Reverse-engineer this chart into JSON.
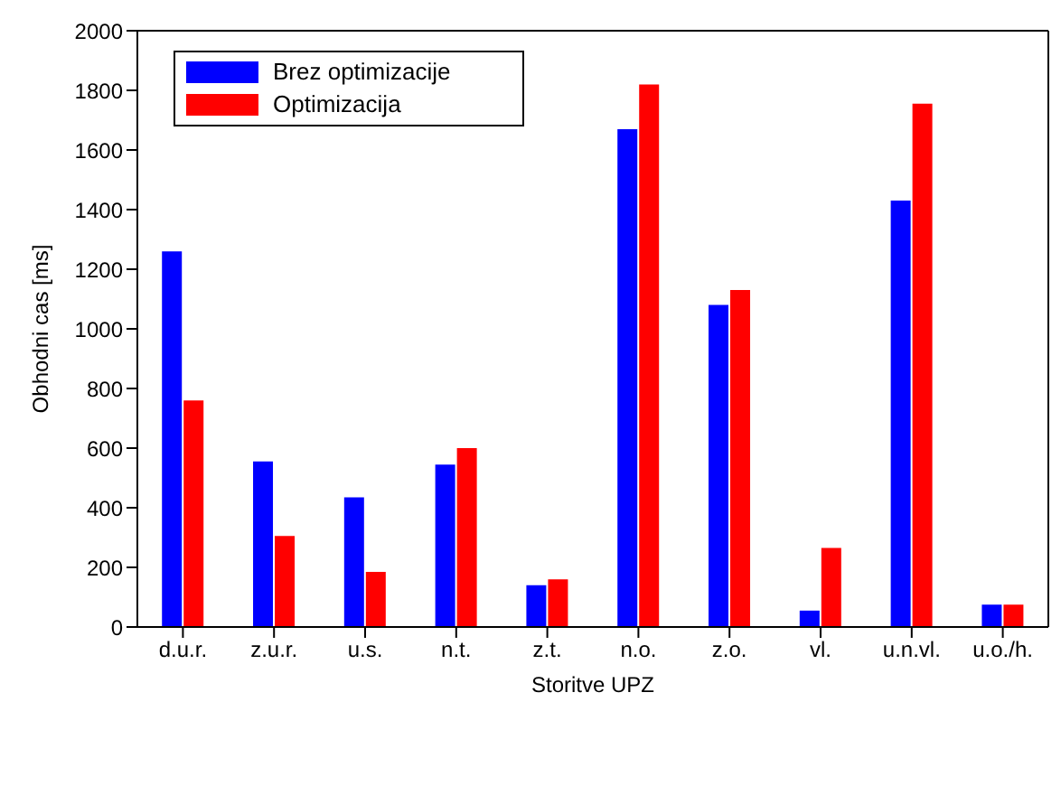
{
  "chart_data": {
    "type": "bar",
    "xlabel": "Storitve UPZ",
    "ylabel": "Obhodni cas [ms]",
    "categories": [
      "d.u.r.",
      "z.u.r.",
      "u.s.",
      "n.t.",
      "z.t.",
      "n.o.",
      "z.o.",
      "vl.",
      "u.n.vl.",
      "u.o./h."
    ],
    "series": [
      {
        "name": "Brez optimizacije",
        "color": "#0000ff",
        "values": [
          1260,
          555,
          435,
          545,
          140,
          1670,
          1080,
          55,
          1430,
          75
        ]
      },
      {
        "name": "Optimizacija",
        "color": "#ff0000",
        "values": [
          760,
          305,
          185,
          600,
          160,
          1820,
          1130,
          265,
          1755,
          75
        ]
      }
    ],
    "ylim": [
      0,
      2000
    ],
    "yticks": [
      0,
      200,
      400,
      600,
      800,
      1000,
      1200,
      1400,
      1600,
      1800,
      2000
    ],
    "grid": false,
    "legend": "top left"
  }
}
